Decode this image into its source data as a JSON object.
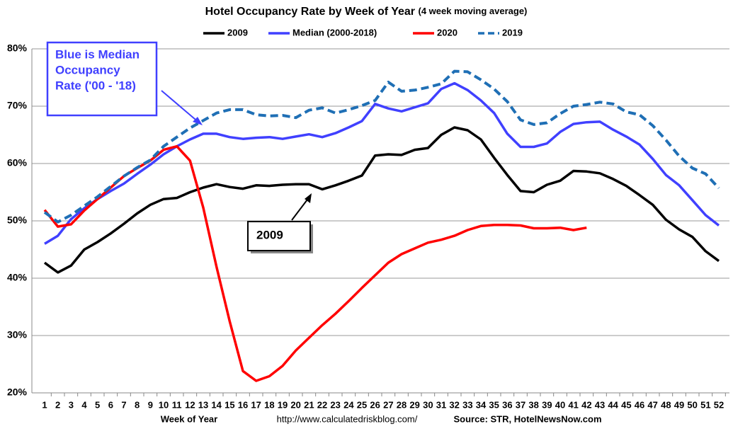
{
  "chart_data": {
    "type": "line",
    "title": "Hotel Occupancy Rate by  Week of Year",
    "subtitle": "(4 week moving average)",
    "x_label": "Week of Year",
    "url": "http://www.calculatedriskblog.com/",
    "source": "Source: STR, HotelNewsNow.com",
    "categories": [
      1,
      2,
      3,
      4,
      5,
      6,
      7,
      8,
      9,
      10,
      11,
      12,
      13,
      14,
      15,
      16,
      17,
      18,
      19,
      20,
      21,
      22,
      23,
      24,
      25,
      26,
      27,
      28,
      29,
      30,
      31,
      32,
      33,
      34,
      35,
      36,
      37,
      38,
      39,
      40,
      41,
      42,
      43,
      44,
      45,
      46,
      47,
      48,
      49,
      50,
      51,
      52
    ],
    "ylim": [
      20,
      80
    ],
    "yticks": [
      {
        "value": 20,
        "label": "20%"
      },
      {
        "value": 30,
        "label": "30%"
      },
      {
        "value": 40,
        "label": "40%"
      },
      {
        "value": 50,
        "label": "50%"
      },
      {
        "value": 60,
        "label": "60%"
      },
      {
        "value": 70,
        "label": "70%"
      },
      {
        "value": 80,
        "label": "80%"
      }
    ],
    "grid": true,
    "legend": "top",
    "series": [
      {
        "name": "2009",
        "color": "#000000",
        "style": "solid",
        "values": [
          42.7,
          41,
          42.2,
          45,
          46.3,
          47.8,
          49.5,
          51.3,
          52.8,
          53.8,
          54,
          55,
          55.8,
          56.4,
          55.9,
          55.6,
          56.2,
          56.1,
          56.3,
          56.4,
          56.4,
          55.5,
          56.2,
          57,
          57.9,
          61.4,
          61.6,
          61.5,
          62.4,
          62.7,
          65,
          66.3,
          65.8,
          64.2,
          61,
          58,
          55.2,
          55,
          56.3,
          57,
          58.7,
          58.6,
          58.3,
          57.3,
          56.1,
          54.5,
          52.8,
          50.2,
          48.5,
          47.2,
          44.7,
          43
        ]
      },
      {
        "name": "Median (2000-2018)",
        "color": "#4040ff",
        "style": "solid",
        "values": [
          46,
          47.4,
          50.3,
          52.2,
          53.8,
          55.2,
          56.5,
          58.2,
          59.8,
          61.6,
          63,
          64.2,
          65.2,
          65.2,
          64.6,
          64.3,
          64.5,
          64.6,
          64.3,
          64.7,
          65.1,
          64.6,
          65.3,
          66.3,
          67.4,
          70.4,
          69.6,
          69.1,
          69.8,
          70.5,
          73,
          74,
          72.8,
          71,
          68.8,
          65.2,
          62.9,
          62.9,
          63.5,
          65.5,
          66.9,
          67.2,
          67.3,
          65.9,
          64.7,
          63.3,
          60.8,
          58,
          56.2,
          53.6,
          51,
          49.2
        ]
      },
      {
        "name": "2020",
        "color": "#ff0000",
        "style": "solid",
        "values": [
          51.9,
          49,
          49.4,
          51.8,
          53.8,
          55.8,
          57.8,
          59.2,
          60.5,
          62.4,
          63,
          60.5,
          52.3,
          42,
          32.5,
          23.8,
          22.1,
          22.9,
          24.7,
          27.4,
          29.6,
          31.8,
          33.8,
          36,
          38.3,
          40.5,
          42.7,
          44.2,
          45.2,
          46.2,
          46.7,
          47.4,
          48.4,
          49.1,
          49.3,
          49.3,
          49.2,
          48.7,
          48.7,
          48.8,
          48.4,
          48.8,
          null,
          null,
          null,
          null,
          null,
          null,
          null,
          null,
          null,
          null
        ]
      },
      {
        "name": "2019",
        "color": "#1f6fb5",
        "style": "dashed",
        "values": [
          51.5,
          49.8,
          51,
          52.6,
          54.2,
          56,
          57.8,
          59.3,
          60.6,
          63,
          64.6,
          66.2,
          67.5,
          68.8,
          69.4,
          69.4,
          68.5,
          68.3,
          68.4,
          68,
          69.3,
          69.7,
          68.8,
          69.4,
          70.1,
          71,
          74.2,
          72.6,
          72.8,
          73.3,
          73.9,
          76.1,
          76,
          74.6,
          73,
          70.8,
          67.6,
          66.8,
          67.1,
          68.7,
          70,
          70.3,
          70.7,
          70.4,
          69,
          68.5,
          66.6,
          64.1,
          61.3,
          59.2,
          58.2,
          55.7
        ]
      }
    ],
    "annotations": [
      {
        "lines": [
          "Blue is Median",
          "Occupancy",
          "Rate ('00 - '18)"
        ],
        "color": "#4040ff"
      },
      {
        "lines": [
          "2009"
        ],
        "color": "#000000"
      }
    ]
  }
}
